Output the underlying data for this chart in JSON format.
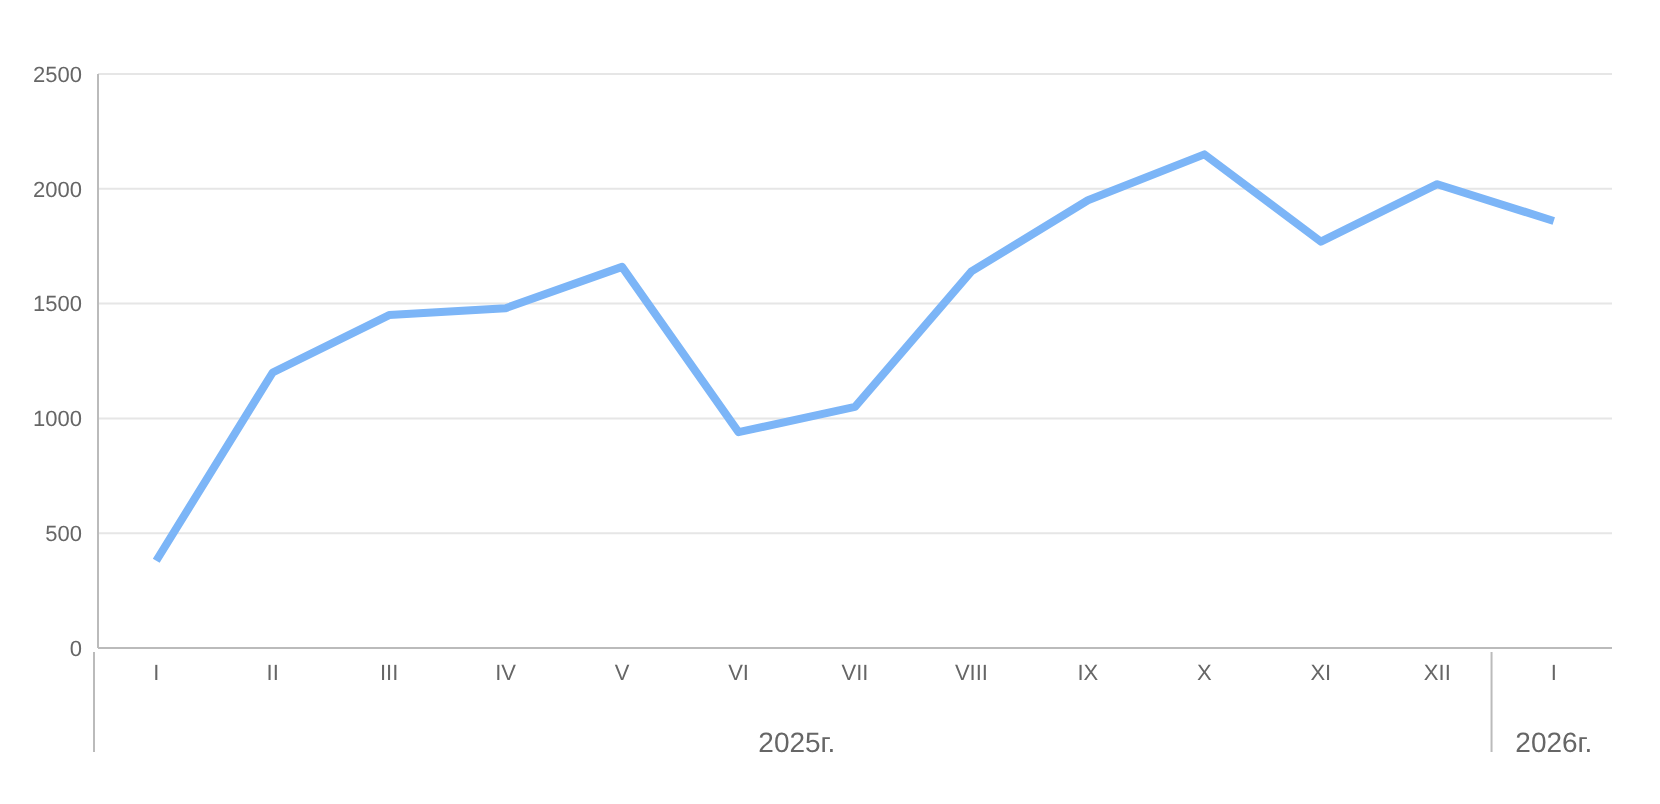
{
  "chart_data": {
    "type": "line",
    "categories": [
      "I",
      "II",
      "III",
      "IV",
      "V",
      "VI",
      "VII",
      "VIII",
      "IX",
      "X",
      "XI",
      "XII",
      "I"
    ],
    "series": [
      {
        "color": "#7cb5f7",
        "values": [
          380,
          1200,
          1450,
          1480,
          1660,
          940,
          1050,
          1640,
          1950,
          2150,
          1770,
          2020,
          1860
        ]
      }
    ],
    "ylim": [
      0,
      2500
    ],
    "yticks": [
      0,
      500,
      1000,
      1500,
      2000,
      2500
    ],
    "grid": "y",
    "marker": "none",
    "legend": false,
    "annotations": [
      "2025г.",
      "2026г."
    ]
  }
}
